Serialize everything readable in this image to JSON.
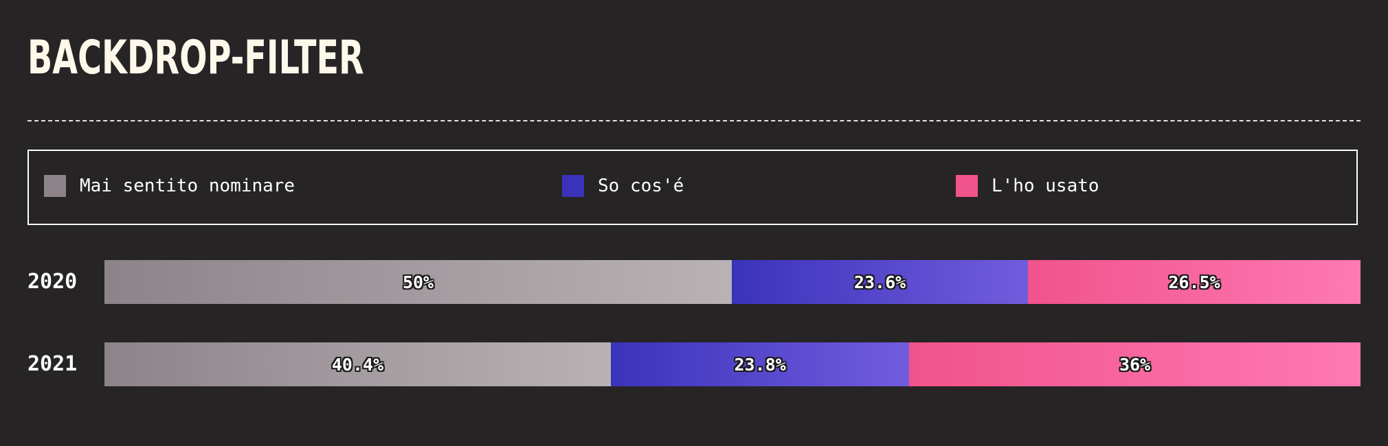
{
  "title": "BACKDROP-FILTER",
  "legend": [
    {
      "label": "Mai sentito nominare",
      "color": "#8c8489"
    },
    {
      "label": "So cos'é",
      "color": "#3b33bb"
    },
    {
      "label": "L'ho usato",
      "color": "#f1538b"
    }
  ],
  "chart_data": {
    "type": "bar",
    "orientation": "horizontal",
    "stacked": true,
    "normalized": true,
    "categories": [
      "2020",
      "2021"
    ],
    "series": [
      {
        "name": "Mai sentito nominare",
        "values": [
          50,
          40.4
        ],
        "labels": [
          "50%",
          "40.4%"
        ],
        "gradient": [
          "#8c8489",
          "#b9b2b5"
        ]
      },
      {
        "name": "So cos'é",
        "values": [
          23.6,
          23.8
        ],
        "labels": [
          "23.6%",
          "23.8%"
        ],
        "gradient": [
          "#3b33bb",
          "#725cdd"
        ]
      },
      {
        "name": "L'ho usato",
        "values": [
          26.5,
          36
        ],
        "labels": [
          "26.5%",
          "36%"
        ],
        "gradient": [
          "#f1538b",
          "#fe79b3"
        ]
      }
    ],
    "legend_position": "top",
    "grid": false
  }
}
